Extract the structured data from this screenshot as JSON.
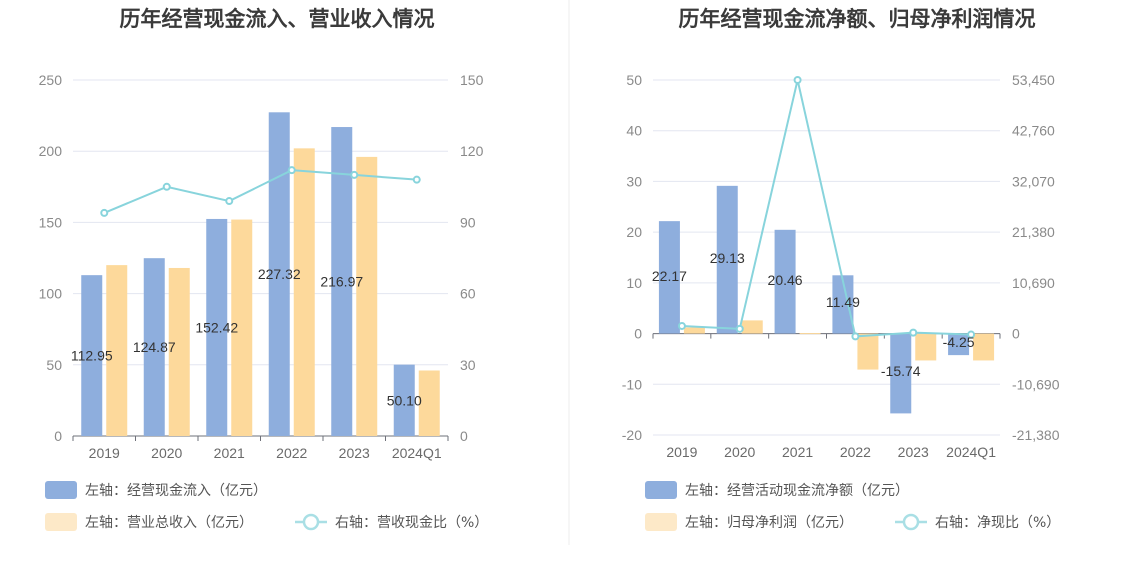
{
  "chart_data": [
    {
      "type": "bar",
      "title": "历年经营现金流入、营业收入情况",
      "categories": [
        "2019",
        "2020",
        "2021",
        "2022",
        "2023",
        "2024Q1"
      ],
      "left_axis": {
        "ticks": [
          "250",
          "200",
          "150",
          "100",
          "50",
          "0"
        ],
        "ylim": [
          0,
          250
        ]
      },
      "right_axis": {
        "ticks": [
          "150",
          "120",
          "90",
          "60",
          "30",
          "0"
        ],
        "ylim": [
          0,
          150
        ]
      },
      "grid": true,
      "legend_position": "bottom",
      "series": [
        {
          "name": "左轴：经营现金流入（亿元）",
          "type": "bar",
          "axis": "left",
          "color": "#8eaedd",
          "values": [
            112.95,
            124.87,
            152.42,
            227.32,
            216.97,
            50.1
          ],
          "labels": [
            "112.95",
            "124.87",
            "152.42",
            "227.32",
            "216.97",
            "50.10"
          ]
        },
        {
          "name": "左轴：营业总收入（亿元）",
          "type": "bar",
          "axis": "left",
          "color": "#fdd99b",
          "values": [
            120,
            118,
            152,
            202,
            196,
            46
          ]
        },
        {
          "name": "右轴：营收现金比（%）",
          "type": "line",
          "axis": "right",
          "color": "#88d4dc",
          "values": [
            94,
            105,
            99,
            112,
            110,
            108
          ]
        }
      ]
    },
    {
      "type": "bar",
      "title": "历年经营现金流净额、归母净利润情况",
      "categories": [
        "2019",
        "2020",
        "2021",
        "2022",
        "2023",
        "2024Q1"
      ],
      "left_axis": {
        "ticks": [
          "50",
          "40",
          "30",
          "20",
          "10",
          "0",
          "-10",
          "-20"
        ],
        "ylim": [
          -20,
          50
        ]
      },
      "right_axis": {
        "ticks": [
          "53,450",
          "42,760",
          "32,070",
          "21,380",
          "10,690",
          "0",
          "-10,690",
          "-21,380"
        ],
        "ylim": [
          -21380,
          53450
        ]
      },
      "grid": true,
      "legend_position": "bottom",
      "series": [
        {
          "name": "左轴：经营活动现金流净额（亿元）",
          "type": "bar",
          "axis": "left",
          "color": "#8eaedd",
          "values": [
            22.17,
            29.13,
            20.46,
            11.49,
            -15.74,
            -4.25
          ],
          "labels": [
            "22.17",
            "29.13",
            "20.46",
            "11.49",
            "-15.74",
            "-4.25"
          ]
        },
        {
          "name": "左轴：归母净利润（亿元）",
          "type": "bar",
          "axis": "left",
          "color": "#fdd99b",
          "values": [
            1.2,
            2.6,
            0.1,
            -7.1,
            -5.3,
            -5.3
          ]
        },
        {
          "name": "右轴：净现比（%）",
          "type": "line",
          "axis": "right",
          "color": "#88d4dc",
          "values": [
            1600,
            1000,
            53450,
            -600,
            200,
            -200
          ]
        }
      ]
    }
  ]
}
